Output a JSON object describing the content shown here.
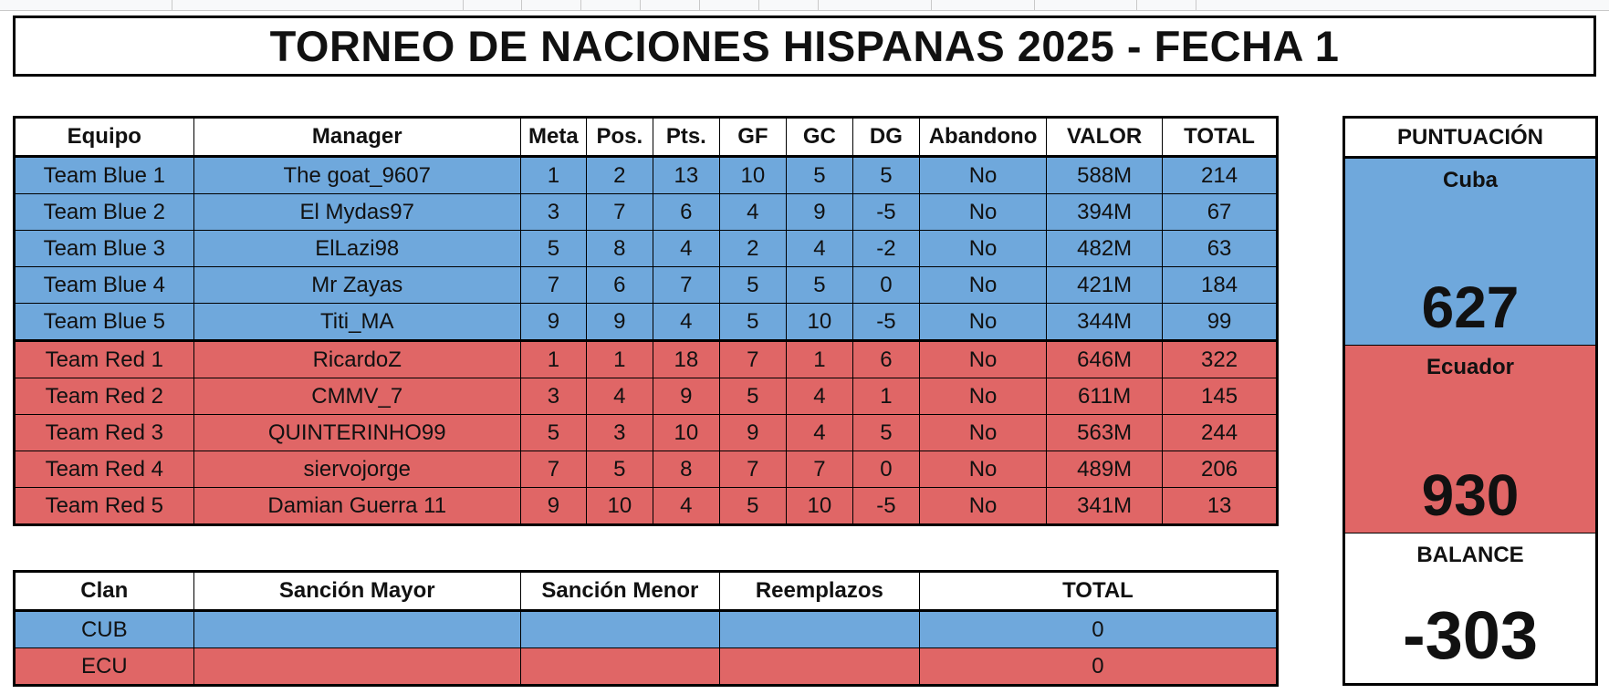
{
  "title": "TORNEO DE NACIONES HISPANAS 2025 - FECHA 1",
  "colors": {
    "blue": "#6fa8dc",
    "red": "#e06666"
  },
  "main_table": {
    "headers": [
      "Equipo",
      "Manager",
      "Meta",
      "Pos.",
      "Pts.",
      "GF",
      "GC",
      "DG",
      "Abandono",
      "VALOR",
      "TOTAL"
    ],
    "rows": [
      [
        "Team Blue 1",
        "The goat_9607",
        "1",
        "2",
        "13",
        "10",
        "5",
        "5",
        "No",
        "588M",
        "214"
      ],
      [
        "Team Blue 2",
        "El Mydas97",
        "3",
        "7",
        "6",
        "4",
        "9",
        "-5",
        "No",
        "394M",
        "67"
      ],
      [
        "Team Blue 3",
        "ElLazi98",
        "5",
        "8",
        "4",
        "2",
        "4",
        "-2",
        "No",
        "482M",
        "63"
      ],
      [
        "Team Blue 4",
        "Mr Zayas",
        "7",
        "6",
        "7",
        "5",
        "5",
        "0",
        "No",
        "421M",
        "184"
      ],
      [
        "Team Blue 5",
        "Titi_MA",
        "9",
        "9",
        "4",
        "5",
        "10",
        "-5",
        "No",
        "344M",
        "99"
      ],
      [
        "Team Red 1",
        "RicardoZ",
        "1",
        "1",
        "18",
        "7",
        "1",
        "6",
        "No",
        "646M",
        "322"
      ],
      [
        "Team Red 2",
        "CMMV_7",
        "3",
        "4",
        "9",
        "5",
        "4",
        "1",
        "No",
        "611M",
        "145"
      ],
      [
        "Team Red 3",
        "QUINTERINHO99",
        "5",
        "3",
        "10",
        "9",
        "4",
        "5",
        "No",
        "563M",
        "244"
      ],
      [
        "Team Red 4",
        "siervojorge",
        "7",
        "5",
        "8",
        "7",
        "7",
        "0",
        "No",
        "489M",
        "206"
      ],
      [
        "Team Red 5",
        "Damian Guerra 11",
        "9",
        "10",
        "4",
        "5",
        "10",
        "-5",
        "No",
        "341M",
        "13"
      ]
    ]
  },
  "penalty_table": {
    "headers": [
      "Clan",
      "Sanción Mayor",
      "Sanción Menor",
      "Reemplazos",
      "TOTAL"
    ],
    "rows": [
      [
        "CUB",
        "",
        "",
        "",
        "0"
      ],
      [
        "ECU",
        "",
        "",
        "",
        "0"
      ]
    ]
  },
  "score_panel": {
    "header": "PUNTUACIÓN",
    "team1_name": "Cuba",
    "team1_score": "627",
    "team2_name": "Ecuador",
    "team2_score": "930",
    "balance_label": "BALANCE",
    "balance_value": "-303"
  }
}
